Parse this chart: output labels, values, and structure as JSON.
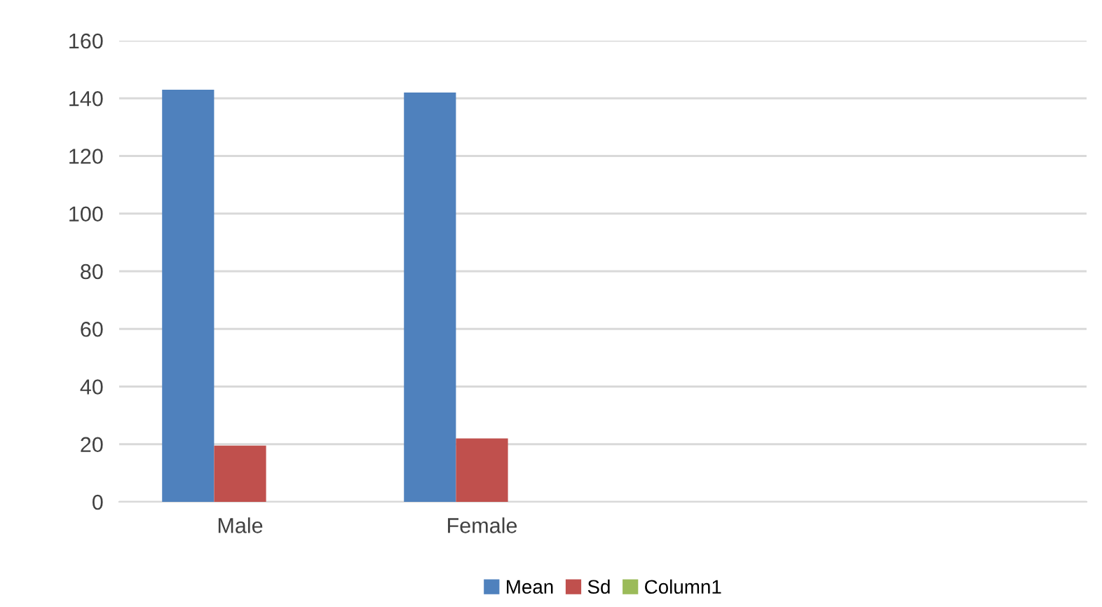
{
  "chart_data": {
    "type": "bar",
    "categories": [
      "Male",
      "Female",
      null,
      null
    ],
    "series": [
      {
        "name": "Mean",
        "color": "#4f81bd",
        "values": [
          143,
          142,
          null,
          null
        ]
      },
      {
        "name": "Sd",
        "color": "#c0504d",
        "values": [
          19.5,
          22,
          null,
          null
        ]
      },
      {
        "name": "Column1",
        "color": "#9bbb59",
        "values": [
          null,
          null,
          null,
          null
        ]
      }
    ],
    "ylim": [
      0,
      160
    ],
    "yticks": [
      0,
      20,
      40,
      60,
      80,
      100,
      120,
      140,
      160
    ],
    "grid": "y",
    "legend": "bottom"
  }
}
